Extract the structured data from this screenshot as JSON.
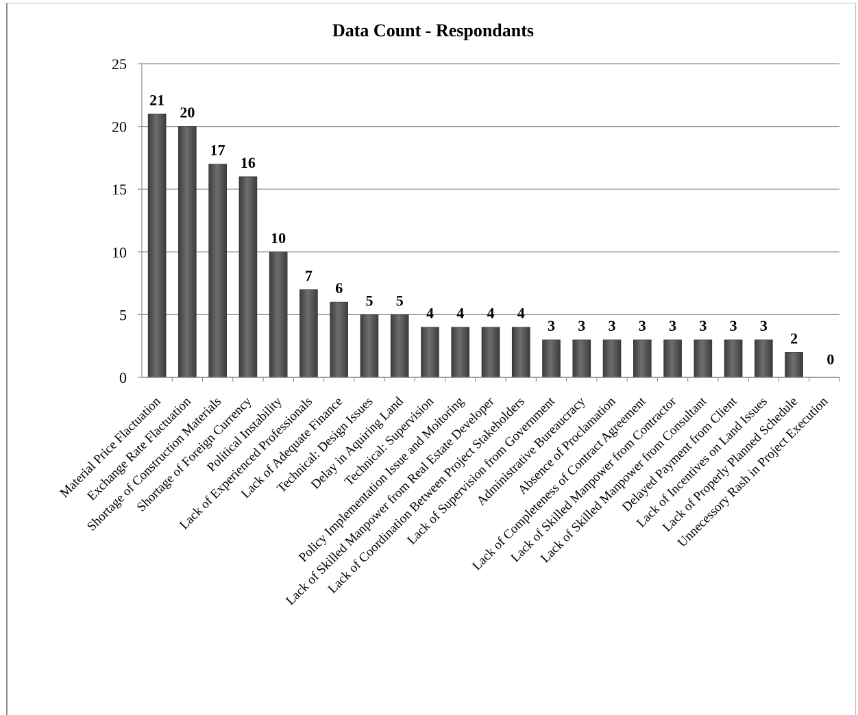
{
  "chart_data": {
    "type": "bar",
    "title": "Data Count - Respondants",
    "categories": [
      "Material Price Flactuation",
      "Exchange Rate Flactuation",
      "Shortage of Construction Materials",
      "Shortage of Foreign Currency",
      "Political Instability",
      "Lack of Experienced Professionals",
      "Lack of Adequate Finance",
      "Technical: Design Issues",
      "Delay in Aquiring Land",
      "Technical: Supervision",
      "Policy Implementation Issue and Moitoring",
      "Lack of Skilled Manpower from Real Estate Developer",
      "Lack of Coordination Between Project Stakeholders",
      "Lack of Supervision from Government",
      "Administrative Bureaucracy",
      "Absence of Proclamation",
      "Lack of Completeness of Contract Agreement",
      "Lack of Skilled Manpower from Contractor",
      "Lack of Skilled Manpower from Consultant",
      "Delayed Payment from Client",
      "Lack of Incentives on Land Issues",
      "Lack of Properly Planned Schedule",
      "Unnecessory Rash in Project Execution"
    ],
    "values": [
      21,
      20,
      17,
      16,
      10,
      7,
      6,
      5,
      5,
      4,
      4,
      4,
      4,
      3,
      3,
      3,
      3,
      3,
      3,
      3,
      3,
      2,
      0
    ],
    "ylim": [
      0,
      25
    ],
    "yticks": [
      0,
      5,
      10,
      15,
      20,
      25
    ],
    "grid": true,
    "legend": "none",
    "data_labels": true,
    "colors": {
      "bar_dark": "#3a3a3a",
      "bar_mid": "#6b6b6b",
      "grid": "#8c8c8c"
    }
  }
}
